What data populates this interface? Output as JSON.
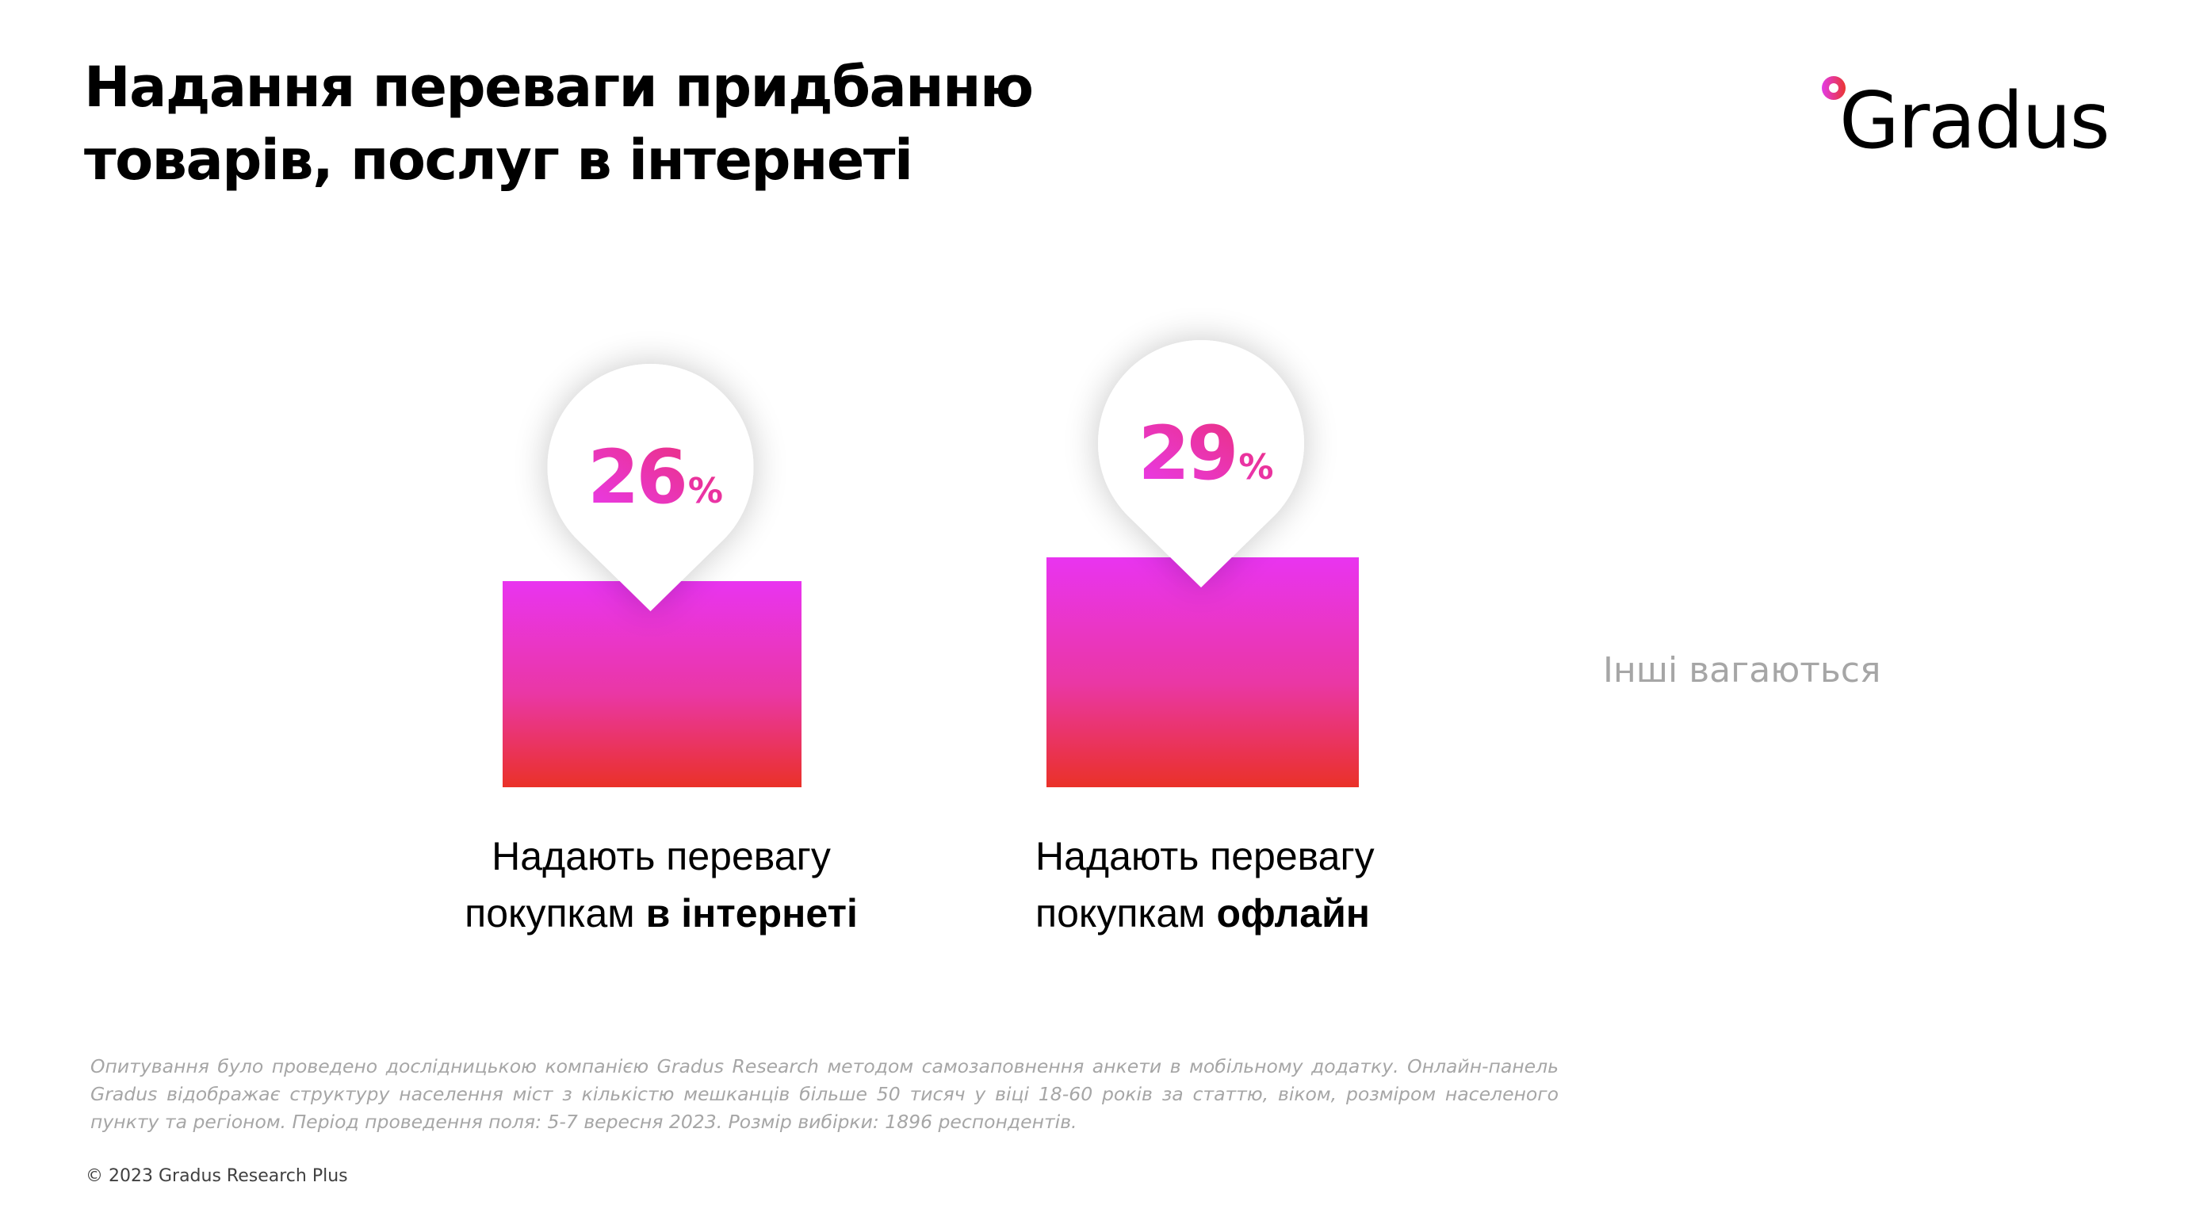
{
  "header": {
    "title_line1": "Надання переваги придбанню",
    "title_line2": "товарів, послуг в інтернеті",
    "logo_text": "Gradus"
  },
  "colors": {
    "bar_top": "#e934f0",
    "bar_bottom": "#ea3128",
    "value_start": "#e93af0",
    "value_end": "#ea2f6e",
    "others_text": "#a6a6a6"
  },
  "chart_data": {
    "type": "bar",
    "title": "Надання переваги придбанню товарів, послуг в інтернеті",
    "unit": "%",
    "categories": [
      "Надають перевагу покупкам в інтернеті",
      "Надають перевагу покупкам офлайн"
    ],
    "values": [
      26,
      29
    ],
    "value_labels": [
      "26",
      "29"
    ],
    "label_parts": [
      {
        "line1": "Надають перевагу",
        "line2_regular": "покупкам ",
        "line2_bold": "в інтернеті"
      },
      {
        "line1": "Надають перевагу",
        "line2_regular": "покупкам ",
        "line2_bold": "офлайн"
      }
    ],
    "annotation": "Інші вагаються",
    "xlabel": "",
    "ylabel": "",
    "grid": false
  },
  "footer": {
    "methodology": "Опитування було проведено дослідницькою компанією Gradus Research методом самозаповнення анкети в мобільному додатку. Онлайн-панель Gradus відображає структуру населення міст з кількістю мешканців більше 50 тисяч у віці 18-60 років за статтю, віком, розміром населеного пункту та регіоном. Період проведення поля: 5-7 вересня 2023. Розмір вибірки: 1896 респондентів.",
    "copyright": "© 2023 Gradus Research Plus"
  }
}
